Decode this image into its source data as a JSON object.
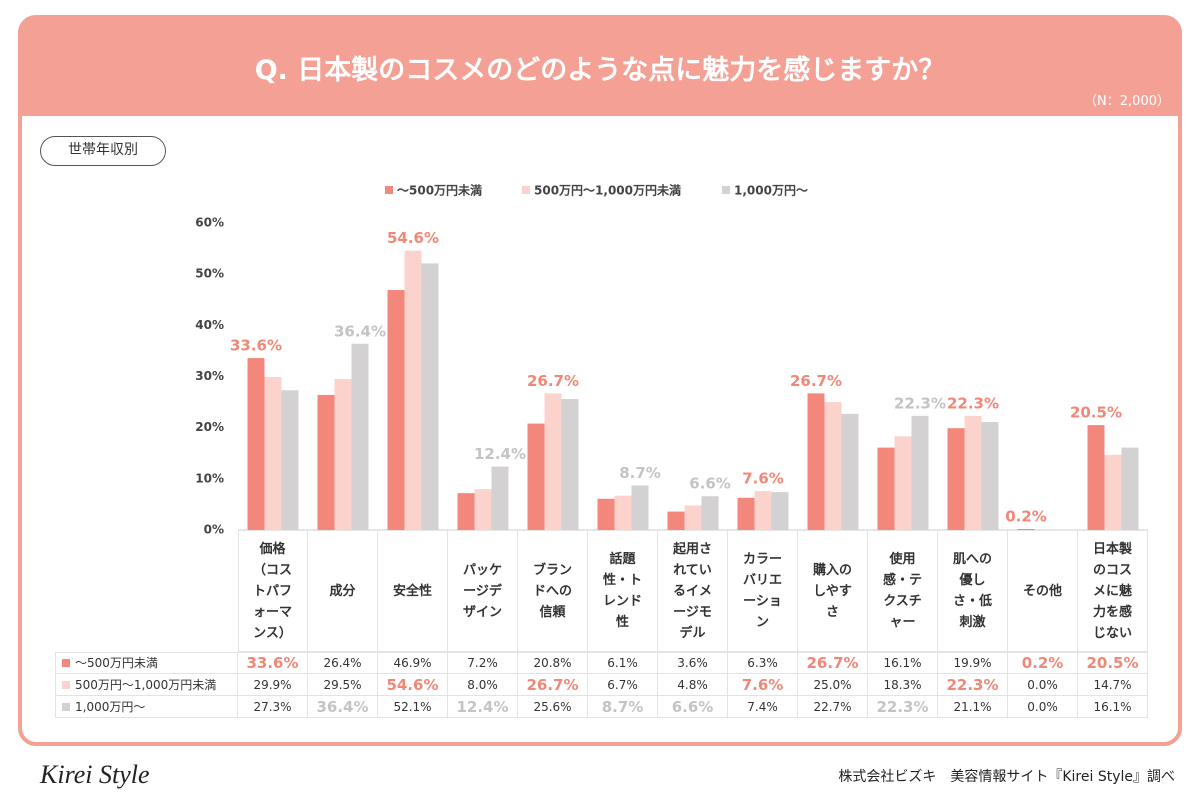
{
  "header": {
    "title": "Q. 日本製のコスメのどのような点に魅力を感じますか？",
    "n": "（N：2,000）"
  },
  "tag": "世帯年収別",
  "chart_data": {
    "type": "bar",
    "categories": [
      "価格（コストパフォーマンス）",
      "成分",
      "安全性",
      "パッケージデザイン",
      "ブランドへの信頼",
      "話題性・トレンド性",
      "起用されているイメージモデル",
      "カラーバリエーション",
      "購入のしやすさ",
      "使用感・テクスチャー",
      "肌への優しさ・低刺激",
      "その他",
      "日本製のコスメに魅力を感じない"
    ],
    "series": [
      {
        "name": "～500万円未満",
        "color": "#f4877b",
        "label_color": "#f08878",
        "values": [
          33.6,
          26.4,
          46.9,
          7.2,
          20.8,
          6.1,
          3.6,
          6.3,
          26.7,
          16.1,
          19.9,
          0.2,
          20.5
        ],
        "value_labels": [
          "33.6%",
          "26.4%",
          "46.9%",
          "7.2%",
          "20.8%",
          "6.1%",
          "3.6%",
          "6.3%",
          "26.7%",
          "16.1%",
          "19.9%",
          "0.2%",
          "20.5%"
        ]
      },
      {
        "name": "500万円～1,000万円未満",
        "color": "#fcd3cc",
        "label_color": "#f08878",
        "values": [
          29.9,
          29.5,
          54.6,
          8.0,
          26.7,
          6.7,
          4.8,
          7.6,
          25.0,
          18.3,
          22.3,
          0.0,
          14.7
        ],
        "value_labels": [
          "29.9%",
          "29.5%",
          "54.6%",
          "8.0%",
          "26.7%",
          "6.7%",
          "4.8%",
          "7.6%",
          "25.0%",
          "18.3%",
          "22.3%",
          "0.0%",
          "14.7%"
        ]
      },
      {
        "name": "1,000万円～",
        "color": "#d3d1d1",
        "label_color": "#c4c4c4",
        "values": [
          27.3,
          36.4,
          52.1,
          12.4,
          25.6,
          8.7,
          6.6,
          7.4,
          22.7,
          22.3,
          21.1,
          0.0,
          16.1
        ],
        "value_labels": [
          "27.3%",
          "36.4%",
          "52.1%",
          "12.4%",
          "25.6%",
          "8.7%",
          "6.6%",
          "7.4%",
          "22.7%",
          "22.3%",
          "21.1%",
          "0.0%",
          "16.1%"
        ]
      }
    ],
    "highlights": [
      0,
      2,
      1,
      2,
      1,
      2,
      2,
      1,
      0,
      2,
      1,
      0,
      0
    ],
    "ylim": [
      0,
      60
    ],
    "yticks": [
      {
        "value": 0,
        "label": "0%"
      },
      {
        "value": 10,
        "label": "10%"
      },
      {
        "value": 20,
        "label": "20%"
      },
      {
        "value": 30,
        "label": "30%"
      },
      {
        "value": 40,
        "label": "40%"
      },
      {
        "value": 50,
        "label": "50%"
      },
      {
        "value": 60,
        "label": "60%"
      }
    ],
    "grid": false
  },
  "footer": {
    "logo": "Kirei Style",
    "credit": "株式会社ビズキ　美容情報サイト『Kirei Style』調べ"
  }
}
